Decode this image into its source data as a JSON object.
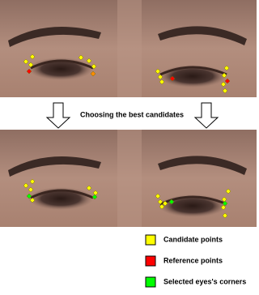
{
  "caption": "Choosing the best candidates",
  "legend": [
    {
      "label": "Candidate points",
      "color": "#ffff00"
    },
    {
      "label": "Reference points",
      "color": "#ff0000"
    },
    {
      "label": "Selected eyes's corners",
      "color": "#00ff00"
    }
  ]
}
